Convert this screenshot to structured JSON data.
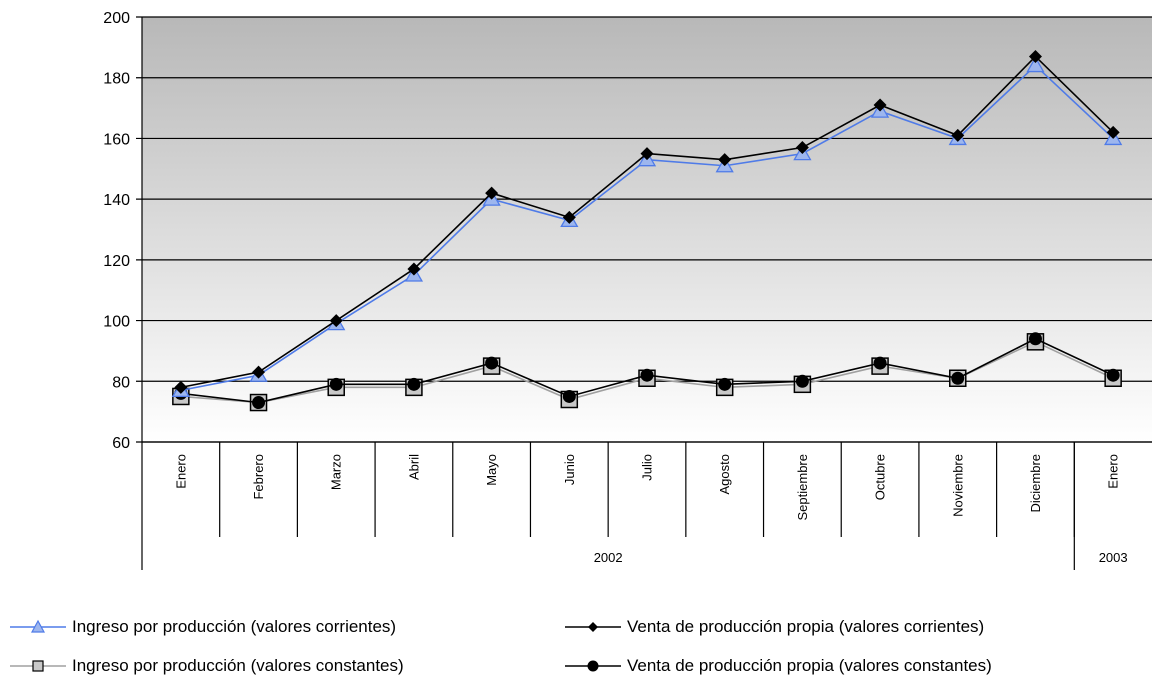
{
  "chart_data": {
    "type": "line",
    "ylim": [
      60,
      200
    ],
    "yticks": [
      60,
      80,
      100,
      120,
      140,
      160,
      180,
      200
    ],
    "grid": true,
    "legend_position": "bottom",
    "categories": [
      "Enero",
      "Febrero",
      "Marzo",
      "Abril",
      "Mayo",
      "Junio",
      "Julio",
      "Agosto",
      "Septiembre",
      "Octubre",
      "Noviembre",
      "Diciembre",
      "Enero"
    ],
    "year_groups": [
      {
        "label": "2002",
        "count": 12
      },
      {
        "label": "2003",
        "count": 1
      }
    ],
    "series": [
      {
        "name": "Ingreso por producción (valores corrientes)",
        "marker": "triangle",
        "color": "#4f7be8",
        "values": [
          77,
          82,
          99,
          115,
          140,
          133,
          153,
          151,
          155,
          169,
          160,
          184,
          160
        ]
      },
      {
        "name": "Venta de producción propia (valores corrientes)",
        "marker": "diamond",
        "color": "#000000",
        "values": [
          78,
          83,
          100,
          117,
          142,
          134,
          155,
          153,
          157,
          171,
          161,
          187,
          162
        ]
      },
      {
        "name": "Ingreso por producción (valores constantes)",
        "marker": "square",
        "color": "#a0a0a0",
        "values": [
          75,
          73,
          78,
          78,
          85,
          74,
          81,
          78,
          79,
          85,
          81,
          93,
          81
        ]
      },
      {
        "name": "Venta de producción propia (valores constantes)",
        "marker": "circle",
        "color": "#000000",
        "values": [
          76,
          73,
          79,
          79,
          86,
          75,
          82,
          79,
          80,
          86,
          81,
          94,
          82
        ]
      }
    ]
  }
}
